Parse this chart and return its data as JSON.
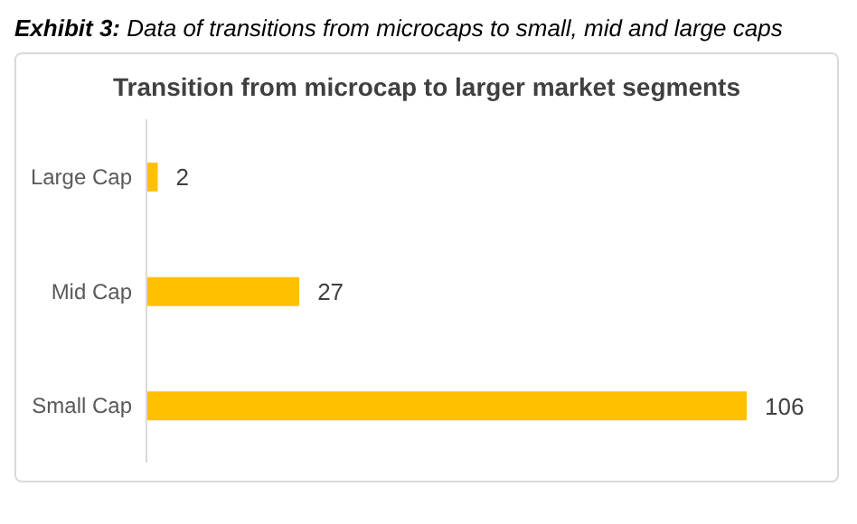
{
  "chart_data": {
    "type": "bar",
    "orientation": "horizontal",
    "title": "Exhibit 3: Data of transitions from microcaps to small, mid and large caps",
    "subtitle": "Transition from microcap to larger market segments",
    "categories": [
      "Large Cap",
      "Mid Cap",
      "Small Cap"
    ],
    "values": [
      2,
      27,
      106
    ],
    "color": "#ffc000",
    "data_labels": true
  }
}
